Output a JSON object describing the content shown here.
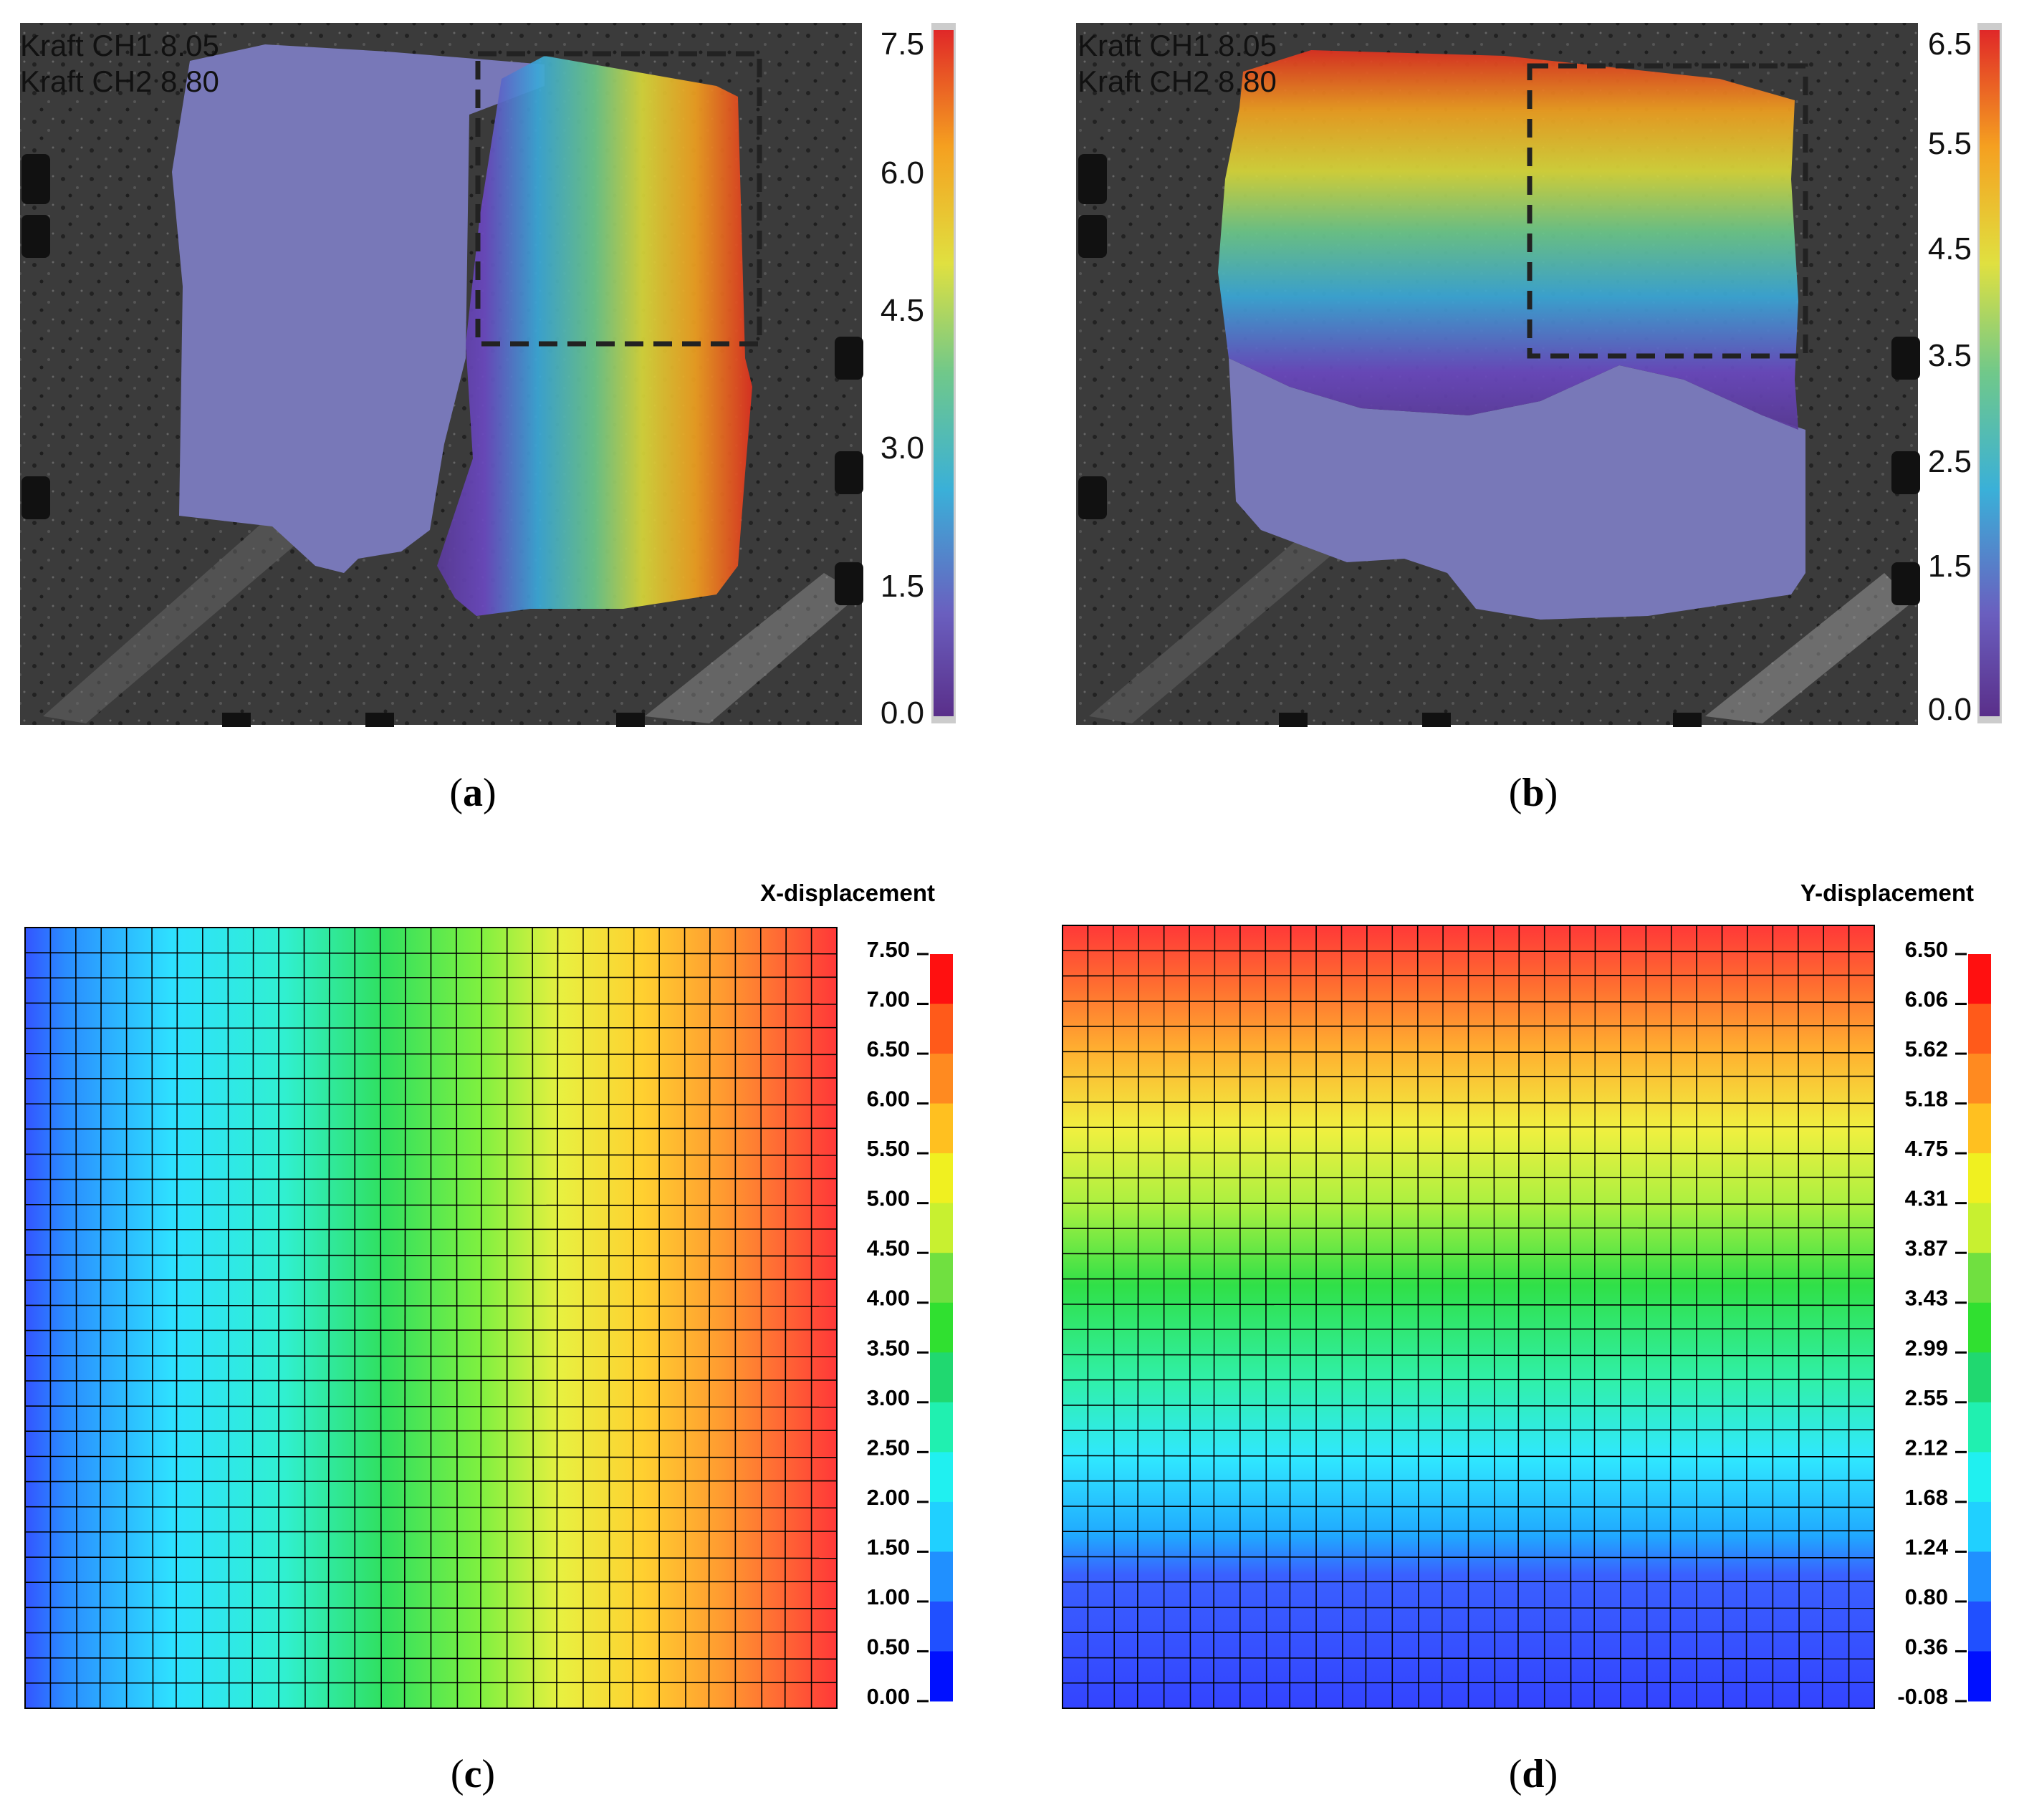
{
  "captions": {
    "a": "a",
    "b": "b",
    "c": "c",
    "d": "d"
  },
  "chart_data": [
    {
      "type": "heatmap",
      "panel": "a",
      "overlay_text": [
        "Kraft CH1 8.05",
        "Kraft CH2 8.80"
      ],
      "colorbar_ticks": [
        "7.5",
        "6.0",
        "4.5",
        "3.0",
        "1.5",
        "0.0"
      ],
      "colorbar_range": [
        0,
        7.5
      ],
      "field_direction": "left-to-right increasing"
    },
    {
      "type": "heatmap",
      "panel": "b",
      "overlay_text": [
        "Kraft CH1 8.05",
        "Kraft CH2 8.80"
      ],
      "colorbar_ticks": [
        "6.5",
        "5.5",
        "4.5",
        "3.5",
        "2.5",
        "1.5",
        "0.0"
      ],
      "colorbar_range": [
        0,
        6.5
      ],
      "field_direction": "bottom-to-top increasing"
    },
    {
      "type": "heatmap",
      "panel": "c",
      "title": "X-displacement",
      "legend_levels": [
        "7.50",
        "7.00",
        "6.50",
        "6.00",
        "5.50",
        "5.00",
        "4.50",
        "4.00",
        "3.50",
        "3.00",
        "2.50",
        "2.00",
        "1.50",
        "1.00",
        "0.50",
        "0.00"
      ],
      "range": [
        0.0,
        7.5
      ],
      "field_direction": "left-to-right increasing"
    },
    {
      "type": "heatmap",
      "panel": "d",
      "title": "Y-displacement",
      "legend_levels": [
        "6.50",
        "6.06",
        "5.62",
        "5.18",
        "4.75",
        "4.31",
        "3.87",
        "3.43",
        "2.99",
        "2.55",
        "2.12",
        "1.68",
        "1.24",
        "0.80",
        "0.36",
        "-0.08"
      ],
      "range": [
        -0.08,
        6.5
      ],
      "field_direction": "bottom-to-top increasing"
    }
  ]
}
